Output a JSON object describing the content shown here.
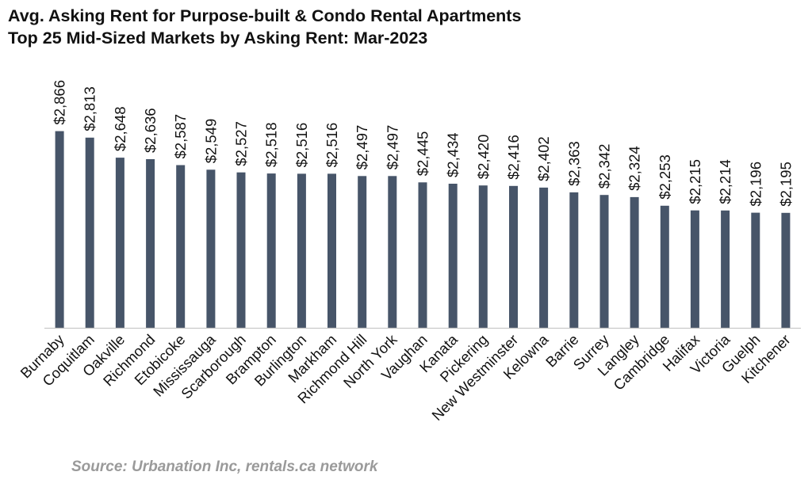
{
  "chart_data": {
    "type": "bar",
    "title_lines": [
      "Avg. Asking Rent for Purpose-built & Condo Rental Apartments",
      "Top 25 Mid-Sized Markets by Asking Rent: Mar-2023"
    ],
    "categories": [
      "Burnaby",
      "Coquitlam",
      "Oakville",
      "Richmond",
      "Etobicoke",
      "Mississauga",
      "Scarborough",
      "Brampton",
      "Burlington",
      "Markham",
      "Richmond Hill",
      "North York",
      "Vaughan",
      "Kanata",
      "Pickering",
      "New Westminster",
      "Kelowna",
      "Barrie",
      "Surrey",
      "Langley",
      "Cambridge",
      "Halifax",
      "Victoria",
      "Guelph",
      "Kitchener"
    ],
    "values": [
      2866,
      2813,
      2648,
      2636,
      2587,
      2549,
      2527,
      2518,
      2516,
      2516,
      2497,
      2497,
      2445,
      2434,
      2420,
      2416,
      2402,
      2363,
      2342,
      2324,
      2253,
      2215,
      2214,
      2196,
      2195
    ],
    "data_labels": [
      "$2,866",
      "$2,813",
      "$2,648",
      "$2,636",
      "$2,587",
      "$2,549",
      "$2,527",
      "$2,518",
      "$2,516",
      "$2,516",
      "$2,497",
      "$2,497",
      "$2,445",
      "$2,434",
      "$2,420",
      "$2,416",
      "$2,402",
      "$2,363",
      "$2,342",
      "$2,324",
      "$2,253",
      "$2,215",
      "$2,214",
      "$2,196",
      "$2,195"
    ],
    "ylim": [
      1250,
      3050
    ],
    "grid": false,
    "bar_color": "#475569",
    "source": "Source: Urbanation Inc, rentals.ca network"
  }
}
